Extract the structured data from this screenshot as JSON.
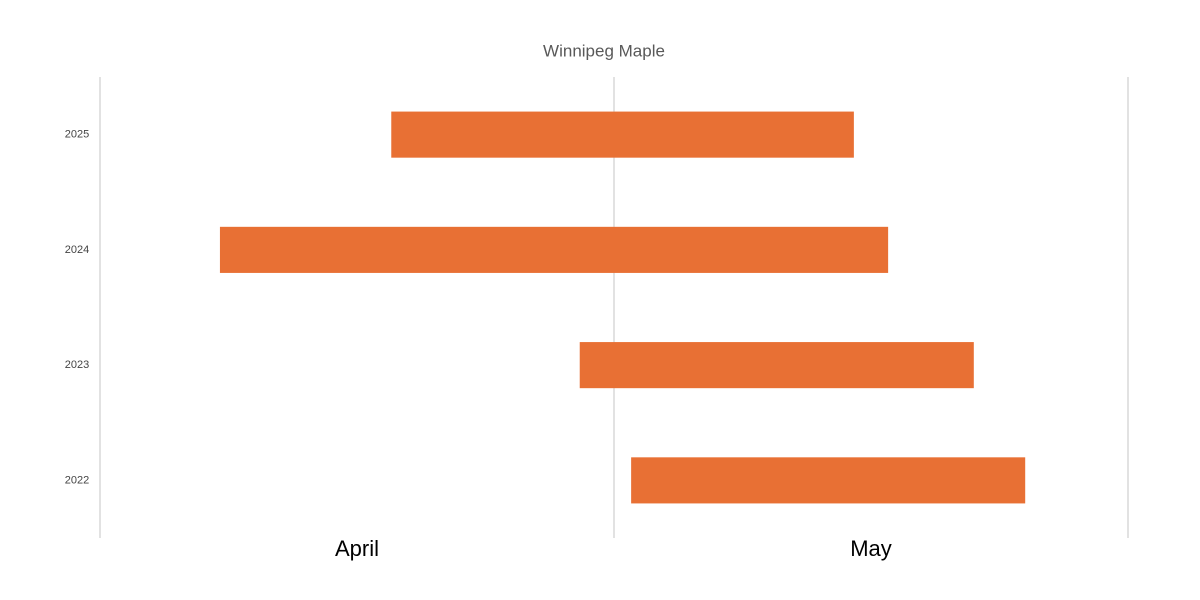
{
  "chart_data": {
    "type": "floating-bar",
    "title": "Winnipeg Maple",
    "categories": [
      "2025",
      "2024",
      "2023",
      "2022"
    ],
    "start": [
      17,
      7,
      28,
      31
    ],
    "end": [
      44,
      46,
      51,
      54
    ],
    "color": "#e87034",
    "x_categories": [
      "April",
      "May"
    ],
    "xlim": [
      0,
      60
    ],
    "grid": true
  }
}
